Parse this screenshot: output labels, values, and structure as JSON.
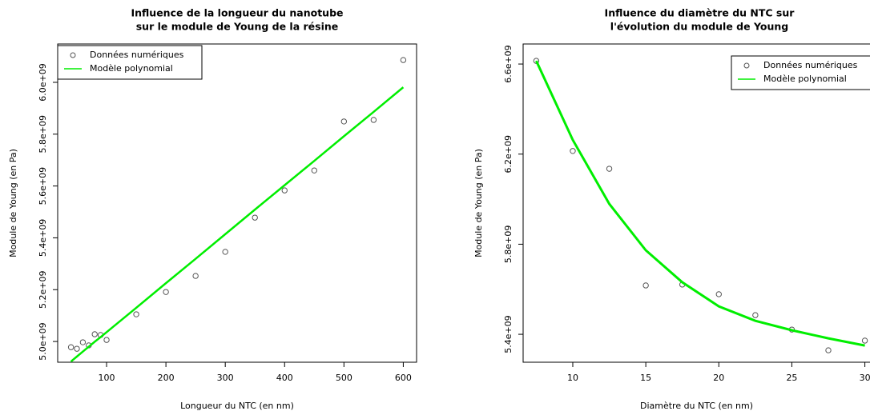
{
  "chart_data": [
    {
      "type": "scatter",
      "title": [
        "Influence de la longueur du nanotube",
        "sur le module de Young de la résine"
      ],
      "x_label": "Longueur du NTC (en nm)",
      "y_label": "Module de Young (en Pa)",
      "x": [
        40,
        50,
        60,
        70,
        80,
        90,
        100,
        150,
        200,
        250,
        300,
        350,
        400,
        450,
        500,
        550,
        600
      ],
      "series": [
        {
          "name": "Données numériques",
          "style": "points",
          "color": "#555555",
          "values": [
            4978000000.0,
            4972000000.0,
            4997000000.0,
            4985000000.0,
            5028000000.0,
            5025000000.0,
            5006000000.0,
            5105000000.0,
            5191000000.0,
            5253000000.0,
            5346000000.0,
            5478000000.0,
            5583000000.0,
            5660000000.0,
            5849000000.0,
            5855000000.0,
            6086000000.0
          ]
        },
        {
          "name": "Modèle polynomial",
          "style": "line",
          "color": "#00ee00",
          "values": [
            4923000000.0,
            4942000000.0,
            4961000000.0,
            4980000000.0,
            4999000000.0,
            5017000000.0,
            5036000000.0,
            5130000000.0,
            5225000000.0,
            5319000000.0,
            5414000000.0,
            5509000000.0,
            5603000000.0,
            5697000000.0,
            5792000000.0,
            5886000000.0,
            5981000000.0
          ]
        }
      ],
      "xlim": [
        17.6,
        622.4
      ],
      "ylim": [
        4920000000.0,
        6148000000.0
      ],
      "xticks": [
        100,
        200,
        300,
        400,
        500,
        600
      ],
      "yticks": [
        {
          "value": 5000000000.0,
          "label": "5.0e+09"
        },
        {
          "value": 5200000000.0,
          "label": "5.2e+09"
        },
        {
          "value": 5400000000.0,
          "label": "5.4e+09"
        },
        {
          "value": 5600000000.0,
          "label": "5.6e+09"
        },
        {
          "value": 5800000000.0,
          "label": "5.8e+09"
        },
        {
          "value": 6000000000.0,
          "label": "6.0e+09"
        }
      ],
      "legend": "topleft"
    },
    {
      "type": "scatter",
      "title": [
        "Influence du diamètre du NTC sur",
        "l'évolution du module de Young"
      ],
      "x_label": "Diamètre du NTC (en nm)",
      "y_label": "Module de Young (en Pa)",
      "x": [
        7.5,
        10,
        12.5,
        15,
        17.5,
        20,
        22.5,
        25,
        27.5,
        30
      ],
      "series": [
        {
          "name": "Données numériques",
          "style": "points",
          "color": "#555555",
          "values": [
            6614000000.0,
            6214000000.0,
            6135000000.0,
            5617000000.0,
            5621000000.0,
            5578000000.0,
            5485000000.0,
            5421000000.0,
            5329000000.0,
            5372000000.0
          ]
        },
        {
          "name": "Modèle polynomial",
          "style": "line",
          "color": "#00ee00",
          "values": [
            6614000000.0,
            6263000000.0,
            5979000000.0,
            5773000000.0,
            5631000000.0,
            5524000000.0,
            5460000000.0,
            5418000000.0,
            5382000000.0,
            5350000000.0
          ]
        }
      ],
      "xlim": [
        6.6,
        30.9
      ],
      "ylim": [
        5276000000.0,
        6689000000.0
      ],
      "xticks": [
        10,
        15,
        20,
        25,
        30
      ],
      "yticks": [
        {
          "value": 5400000000.0,
          "label": "5.4e+09"
        },
        {
          "value": 5800000000.0,
          "label": "5.8e+09"
        },
        {
          "value": 6200000000.0,
          "label": "6.2e+09"
        },
        {
          "value": 6600000000.0,
          "label": "6.6e+09"
        }
      ],
      "legend": "topright"
    }
  ]
}
